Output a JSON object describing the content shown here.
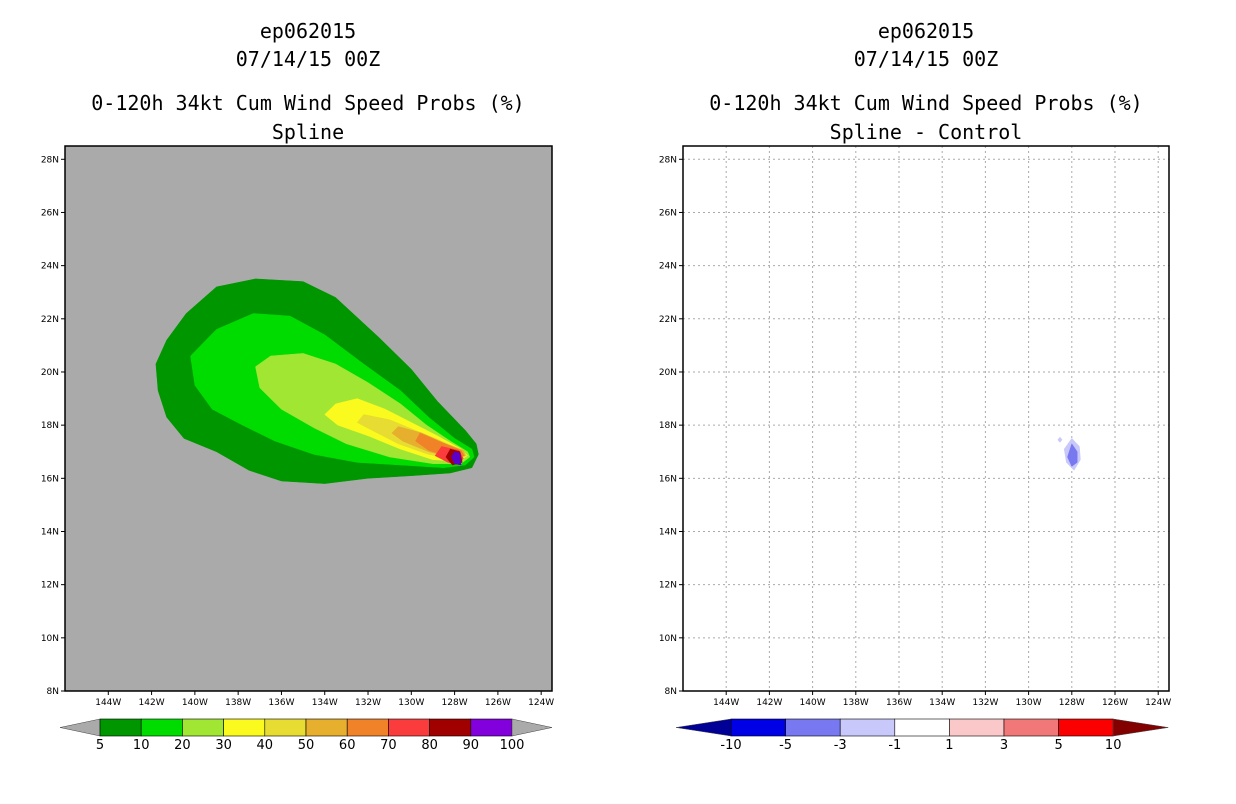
{
  "chart_data": [
    {
      "type": "heatmap",
      "panel": "left",
      "title_lines": [
        "ep062015",
        "07/14/15 00Z",
        "0-120h 34kt Cum Wind Speed Probs (%)",
        "Spline"
      ],
      "background_color": "#aaaaaa",
      "xlim": [
        -146,
        -123.5
      ],
      "ylim": [
        8,
        28.5
      ],
      "x_ticks": [
        -144,
        -142,
        -140,
        -138,
        -136,
        -134,
        -132,
        -130,
        -128,
        -126,
        -124
      ],
      "x_tick_labels": [
        "144W",
        "142W",
        "140W",
        "138W",
        "136W",
        "134W",
        "132W",
        "130W",
        "128W",
        "126W",
        "124W"
      ],
      "y_ticks": [
        8,
        10,
        12,
        14,
        16,
        18,
        20,
        22,
        24,
        26,
        28
      ],
      "y_tick_labels": [
        "8N",
        "10N",
        "12N",
        "14N",
        "16N",
        "18N",
        "20N",
        "22N",
        "24N",
        "26N",
        "28N"
      ],
      "grid": false,
      "contours": [
        {
          "level": "5",
          "color": "#009600",
          "points": [
            [
              -139.0,
              23.2
            ],
            [
              -137.2,
              23.5
            ],
            [
              -135.0,
              23.4
            ],
            [
              -133.5,
              22.8
            ],
            [
              -131.5,
              21.3
            ],
            [
              -130.0,
              20.1
            ],
            [
              -128.8,
              18.9
            ],
            [
              -127.5,
              17.8
            ],
            [
              -127.0,
              17.3
            ],
            [
              -126.9,
              16.9
            ],
            [
              -127.2,
              16.4
            ],
            [
              -128.2,
              16.2
            ],
            [
              -130.0,
              16.1
            ],
            [
              -132.0,
              16.0
            ],
            [
              -134.0,
              15.8
            ],
            [
              -136.0,
              15.9
            ],
            [
              -137.5,
              16.3
            ],
            [
              -139.0,
              17.0
            ],
            [
              -140.5,
              17.5
            ],
            [
              -141.3,
              18.3
            ],
            [
              -141.7,
              19.3
            ],
            [
              -141.8,
              20.3
            ],
            [
              -141.3,
              21.2
            ],
            [
              -140.4,
              22.2
            ]
          ]
        },
        {
          "level": "10",
          "color": "#00dc00",
          "points": [
            [
              -139.0,
              21.6
            ],
            [
              -137.3,
              22.2
            ],
            [
              -135.6,
              22.1
            ],
            [
              -134.0,
              21.4
            ],
            [
              -132.2,
              20.3
            ],
            [
              -130.5,
              19.3
            ],
            [
              -129.2,
              18.3
            ],
            [
              -128.0,
              17.5
            ],
            [
              -127.2,
              17.1
            ],
            [
              -127.1,
              16.8
            ],
            [
              -127.5,
              16.5
            ],
            [
              -128.5,
              16.4
            ],
            [
              -130.5,
              16.5
            ],
            [
              -132.5,
              16.6
            ],
            [
              -134.5,
              16.9
            ],
            [
              -136.3,
              17.4
            ],
            [
              -137.8,
              18.0
            ],
            [
              -139.2,
              18.6
            ],
            [
              -140.0,
              19.5
            ],
            [
              -140.2,
              20.6
            ]
          ]
        },
        {
          "level": "20",
          "color": "#a0e632",
          "points": [
            [
              -136.5,
              20.6
            ],
            [
              -135.0,
              20.7
            ],
            [
              -133.5,
              20.3
            ],
            [
              -132.0,
              19.6
            ],
            [
              -130.5,
              18.8
            ],
            [
              -129.3,
              18.0
            ],
            [
              -128.2,
              17.4
            ],
            [
              -127.4,
              17.0
            ],
            [
              -127.3,
              16.8
            ],
            [
              -127.7,
              16.55
            ],
            [
              -129.0,
              16.55
            ],
            [
              -131.0,
              16.8
            ],
            [
              -133.0,
              17.3
            ],
            [
              -134.5,
              17.9
            ],
            [
              -136.0,
              18.6
            ],
            [
              -137.0,
              19.4
            ],
            [
              -137.2,
              20.2
            ]
          ]
        },
        {
          "level": "30",
          "color": "#fafa1e",
          "points": [
            [
              -133.5,
              18.8
            ],
            [
              -132.5,
              19.0
            ],
            [
              -131.2,
              18.6
            ],
            [
              -130.0,
              18.1
            ],
            [
              -128.8,
              17.6
            ],
            [
              -127.7,
              17.1
            ],
            [
              -127.4,
              16.85
            ],
            [
              -127.8,
              16.65
            ],
            [
              -129.0,
              16.7
            ],
            [
              -130.5,
              17.1
            ],
            [
              -132.0,
              17.6
            ],
            [
              -133.4,
              18.0
            ],
            [
              -134.0,
              18.4
            ]
          ]
        },
        {
          "level": "40",
          "color": "#e6dc32",
          "points": [
            [
              -132.2,
              18.4
            ],
            [
              -131.0,
              18.2
            ],
            [
              -129.8,
              17.8
            ],
            [
              -128.6,
              17.4
            ],
            [
              -127.6,
              17.05
            ],
            [
              -127.45,
              16.85
            ],
            [
              -127.9,
              16.7
            ],
            [
              -129.2,
              16.9
            ],
            [
              -130.6,
              17.3
            ],
            [
              -131.8,
              17.8
            ],
            [
              -132.5,
              18.1
            ]
          ]
        },
        {
          "level": "50",
          "color": "#e6af2d",
          "points": [
            [
              -130.6,
              17.95
            ],
            [
              -129.5,
              17.7
            ],
            [
              -128.4,
              17.3
            ],
            [
              -127.6,
              17.05
            ],
            [
              -127.5,
              16.85
            ],
            [
              -128.0,
              16.75
            ],
            [
              -129.2,
              17.0
            ],
            [
              -130.4,
              17.4
            ],
            [
              -130.9,
              17.7
            ]
          ]
        },
        {
          "level": "60",
          "color": "#f08228",
          "points": [
            [
              -129.6,
              17.7
            ],
            [
              -128.6,
              17.35
            ],
            [
              -127.7,
              17.05
            ],
            [
              -127.55,
              16.85
            ],
            [
              -128.2,
              16.8
            ],
            [
              -129.2,
              17.05
            ],
            [
              -129.8,
              17.4
            ]
          ]
        },
        {
          "level": "70",
          "color": "#fa3c3c",
          "points": [
            [
              -128.6,
              17.2
            ],
            [
              -127.8,
              17.05
            ],
            [
              -127.6,
              16.75
            ],
            [
              -127.8,
              16.5
            ],
            [
              -128.3,
              16.6
            ],
            [
              -128.9,
              16.85
            ]
          ]
        },
        {
          "level": "80",
          "color": "#a00000",
          "points": [
            [
              -128.2,
              17.1
            ],
            [
              -127.75,
              17.0
            ],
            [
              -127.65,
              16.6
            ],
            [
              -128.1,
              16.5
            ],
            [
              -128.4,
              16.8
            ]
          ]
        },
        {
          "level": "90",
          "color": "#5a00c8",
          "points": [
            [
              -128.0,
              17.0
            ],
            [
              -127.75,
              16.95
            ],
            [
              -127.7,
              16.5
            ],
            [
              -128.0,
              16.55
            ],
            [
              -128.15,
              16.8
            ]
          ]
        }
      ],
      "colorbar": {
        "labels": [
          "5",
          "10",
          "20",
          "30",
          "40",
          "50",
          "60",
          "70",
          "80",
          "90",
          "100"
        ],
        "colors": [
          "#009600",
          "#00dc00",
          "#a0e632",
          "#fafa1e",
          "#e6dc32",
          "#e6af2d",
          "#f08228",
          "#fa3c3c",
          "#a00000",
          "#8200dc"
        ],
        "low_end_color": "#aaaaaa",
        "high_end_color": "#aaaaaa"
      }
    },
    {
      "type": "heatmap",
      "panel": "right",
      "title_lines": [
        "ep062015",
        "07/14/15 00Z",
        "0-120h 34kt Cum Wind Speed Probs (%)",
        "Spline - Control"
      ],
      "background_color": "#ffffff",
      "xlim": [
        -146,
        -123.5
      ],
      "ylim": [
        8,
        28.5
      ],
      "x_ticks": [
        -144,
        -142,
        -140,
        -138,
        -136,
        -134,
        -132,
        -130,
        -128,
        -126,
        -124
      ],
      "x_tick_labels": [
        "144W",
        "142W",
        "140W",
        "138W",
        "136W",
        "134W",
        "132W",
        "130W",
        "128W",
        "126W",
        "124W"
      ],
      "y_ticks": [
        8,
        10,
        12,
        14,
        16,
        18,
        20,
        22,
        24,
        26,
        28
      ],
      "y_tick_labels": [
        "8N",
        "10N",
        "12N",
        "14N",
        "16N",
        "18N",
        "20N",
        "22N",
        "24N",
        "26N",
        "28N"
      ],
      "grid": true,
      "contours": [
        {
          "level": "-3",
          "color": "#c8c8fa",
          "points": [
            [
              -128.0,
              17.5
            ],
            [
              -127.65,
              17.2
            ],
            [
              -127.6,
              16.7
            ],
            [
              -127.9,
              16.3
            ],
            [
              -128.25,
              16.6
            ],
            [
              -128.35,
              17.1
            ]
          ]
        },
        {
          "level": "-5",
          "color": "#7878f0",
          "points": [
            [
              -128.0,
              17.3
            ],
            [
              -127.75,
              17.0
            ],
            [
              -127.75,
              16.6
            ],
            [
              -128.0,
              16.45
            ],
            [
              -128.2,
              16.8
            ]
          ]
        },
        {
          "level": "-3",
          "color": "#c8c8fa",
          "points": [
            [
              -128.55,
              17.55
            ],
            [
              -128.45,
              17.45
            ],
            [
              -128.55,
              17.35
            ],
            [
              -128.65,
              17.45
            ]
          ]
        }
      ],
      "colorbar": {
        "labels": [
          "-10",
          "-5",
          "-3",
          "-1",
          "1",
          "3",
          "5",
          "10"
        ],
        "colors": [
          "#0000e6",
          "#7878f0",
          "#c8c8fa",
          "#ffffff",
          "#fac8c8",
          "#f07878",
          "#fa0000"
        ],
        "low_end_color": "#000096",
        "high_end_color": "#820000"
      }
    }
  ]
}
